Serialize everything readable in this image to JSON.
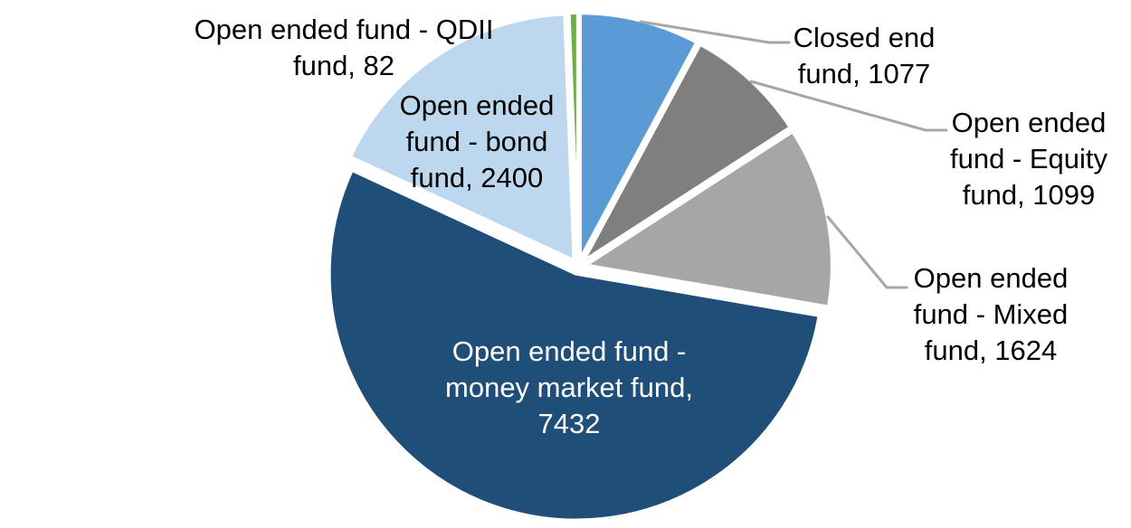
{
  "chart_data": {
    "type": "pie",
    "title": "",
    "legend": "none",
    "data_labels": "category name and value",
    "slices": [
      {
        "label": "Closed end fund",
        "value": 1077,
        "color": "#5B9BD5"
      },
      {
        "label": "Open ended fund - Equity fund",
        "value": 1099,
        "color": "#7F7F7F"
      },
      {
        "label": "Open ended fund - Mixed fund",
        "value": 1624,
        "color": "#A6A6A6"
      },
      {
        "label": "Open ended fund - money market fund",
        "value": 7432,
        "color": "#1F4E79"
      },
      {
        "label": "Open ended fund - bond fund",
        "value": 2400,
        "color": "#BDD7EE"
      },
      {
        "label": "Open ended fund - QDII fund",
        "value": 82,
        "color": "#70AD47"
      }
    ],
    "start_angle_deg": 0,
    "direction": "clockwise",
    "leader_line_color": "#A6A6A6",
    "slice_border_color": "#FFFFFF"
  },
  "labels": {
    "qdii": {
      "lines": [
        "Open ended fund - QDII",
        "fund, 82"
      ]
    },
    "bond": {
      "lines": [
        "Open ended",
        "fund - bond",
        "fund, 2400"
      ]
    },
    "closed": {
      "lines": [
        "Closed end",
        "fund, 1077"
      ]
    },
    "equity": {
      "lines": [
        "Open ended",
        "fund - Equity",
        "fund, 1099"
      ]
    },
    "mixed": {
      "lines": [
        "Open ended",
        "fund - Mixed",
        "fund, 1624"
      ]
    },
    "money": {
      "lines": [
        "Open ended fund -",
        "money market fund,",
        "7432"
      ]
    }
  }
}
